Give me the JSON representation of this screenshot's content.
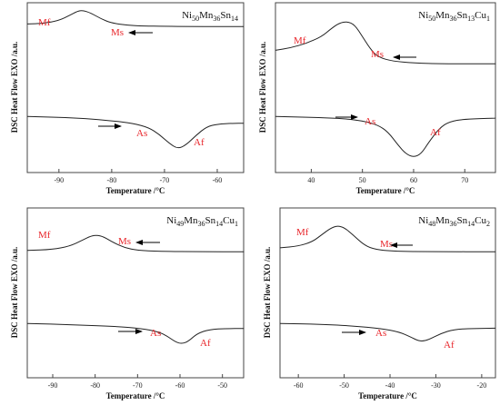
{
  "chart_data": [
    {
      "type": "line",
      "title": "Ni50Mn36Sn14",
      "title_parts": [
        [
          "Ni",
          ""
        ],
        [
          "50",
          "sub"
        ],
        [
          "Mn",
          ""
        ],
        [
          "36",
          "sub"
        ],
        [
          "Sn",
          ""
        ],
        [
          "14",
          "sub"
        ]
      ],
      "xlabel": "Temperature /°C",
      "ylabel": "DSC Heat Flow EXO /a.u.",
      "xlim": [
        -96,
        -55
      ],
      "xticks": [
        -90,
        -80,
        -70,
        -60
      ],
      "tick_labels": [
        "-90",
        "-80",
        "-70",
        "-60"
      ],
      "ylim": [
        0,
        1
      ],
      "series": [
        {
          "points": [
            [
              -96,
              0.875
            ],
            [
              -93,
              0.878
            ],
            [
              -90,
              0.895
            ],
            [
              -88,
              0.925
            ],
            [
              -86.5,
              0.95
            ],
            [
              -85.5,
              0.955
            ],
            [
              -84,
              0.94
            ],
            [
              -82,
              0.905
            ],
            [
              -80,
              0.88
            ],
            [
              -77,
              0.868
            ],
            [
              -74,
              0.863
            ],
            [
              -70,
              0.861
            ],
            [
              -65,
              0.86
            ],
            [
              -60,
              0.86
            ],
            [
              -55,
              0.86
            ]
          ]
        },
        {
          "points": [
            [
              -96,
              0.33
            ],
            [
              -90,
              0.325
            ],
            [
              -85,
              0.318
            ],
            [
              -80,
              0.305
            ],
            [
              -76,
              0.29
            ],
            [
              -73,
              0.265
            ],
            [
              -71,
              0.225
            ],
            [
              -69,
              0.17
            ],
            [
              -67.5,
              0.14
            ],
            [
              -66,
              0.16
            ],
            [
              -64,
              0.22
            ],
            [
              -62,
              0.27
            ],
            [
              -60,
              0.285
            ],
            [
              -57,
              0.29
            ],
            [
              -55,
              0.29
            ]
          ]
        }
      ],
      "annotations": {
        "Mf": "Mf",
        "Ms": "Ms",
        "As": "As",
        "Af": "Af"
      },
      "colors": {
        "annotation": "#e8252a",
        "line": "#222222",
        "arrow": "#000000"
      }
    },
    {
      "type": "line",
      "title": "Ni50Mn36Sn13Cu1",
      "title_parts": [
        [
          "Ni",
          ""
        ],
        [
          "50",
          "sub"
        ],
        [
          "Mn",
          ""
        ],
        [
          "36",
          "sub"
        ],
        [
          "Sn",
          ""
        ],
        [
          "13",
          "sub"
        ],
        [
          "Cu",
          ""
        ],
        [
          "1",
          "sub"
        ]
      ],
      "xlabel": "Temperature /°C",
      "ylabel": "DSC Heat Flow EXO /a.u.",
      "xlim": [
        33,
        76
      ],
      "xticks": [
        40,
        50,
        60,
        70
      ],
      "tick_labels": [
        "40",
        "50",
        "60",
        "70"
      ],
      "ylim": [
        0,
        1
      ],
      "series": [
        {
          "points": [
            [
              33,
              0.72
            ],
            [
              36,
              0.735
            ],
            [
              39,
              0.76
            ],
            [
              42,
              0.8
            ],
            [
              44,
              0.85
            ],
            [
              45.5,
              0.88
            ],
            [
              47,
              0.89
            ],
            [
              48.5,
              0.87
            ],
            [
              50,
              0.8
            ],
            [
              51.5,
              0.73
            ],
            [
              53,
              0.68
            ],
            [
              56,
              0.655
            ],
            [
              60,
              0.645
            ],
            [
              66,
              0.64
            ],
            [
              76,
              0.64
            ]
          ]
        },
        {
          "points": [
            [
              33,
              0.33
            ],
            [
              40,
              0.325
            ],
            [
              46,
              0.318
            ],
            [
              50,
              0.305
            ],
            [
              53,
              0.28
            ],
            [
              55,
              0.24
            ],
            [
              57,
              0.16
            ],
            [
              58.5,
              0.11
            ],
            [
              60,
              0.09
            ],
            [
              61.5,
              0.11
            ],
            [
              63,
              0.18
            ],
            [
              65,
              0.26
            ],
            [
              67,
              0.3
            ],
            [
              70,
              0.315
            ],
            [
              76,
              0.32
            ]
          ]
        }
      ],
      "annotations": {
        "Mf": "Mf",
        "Ms": "Ms",
        "As": "As",
        "Af": "Af"
      },
      "colors": {
        "annotation": "#e8252a",
        "line": "#222222",
        "arrow": "#000000"
      }
    },
    {
      "type": "line",
      "title": "Ni49Mn36Sn14Cu1",
      "title_parts": [
        [
          "Ni",
          ""
        ],
        [
          "49",
          "sub"
        ],
        [
          "Mn",
          ""
        ],
        [
          "36",
          "sub"
        ],
        [
          "Sn",
          ""
        ],
        [
          "14",
          "sub"
        ],
        [
          "Cu",
          ""
        ],
        [
          "1",
          "sub"
        ]
      ],
      "xlabel": "Temperature /°C",
      "ylabel": "DSC Heat Flow EXO /a.u.",
      "xlim": [
        -96,
        -45
      ],
      "xticks": [
        -90,
        -80,
        -70,
        -60,
        -50
      ],
      "tick_labels": [
        "-90",
        "-80",
        "-70",
        "-60",
        "-50"
      ],
      "ylim": [
        0,
        1
      ],
      "series": [
        {
          "points": [
            [
              -96,
              0.75
            ],
            [
              -90,
              0.755
            ],
            [
              -86,
              0.775
            ],
            [
              -83,
              0.81
            ],
            [
              -81,
              0.835
            ],
            [
              -79.5,
              0.84
            ],
            [
              -78,
              0.83
            ],
            [
              -76,
              0.8
            ],
            [
              -73,
              0.765
            ],
            [
              -70,
              0.75
            ],
            [
              -65,
              0.745
            ],
            [
              -55,
              0.742
            ],
            [
              -45,
              0.742
            ]
          ]
        },
        {
          "points": [
            [
              -96,
              0.32
            ],
            [
              -85,
              0.312
            ],
            [
              -75,
              0.302
            ],
            [
              -69,
              0.29
            ],
            [
              -65,
              0.27
            ],
            [
              -63,
              0.245
            ],
            [
              -61,
              0.21
            ],
            [
              -59.5,
              0.2
            ],
            [
              -58,
              0.215
            ],
            [
              -56,
              0.26
            ],
            [
              -53,
              0.285
            ],
            [
              -49,
              0.29
            ],
            [
              -45,
              0.29
            ]
          ]
        }
      ],
      "annotations": {
        "Mf": "Mf",
        "Ms": "Ms",
        "As": "As",
        "Af": "Af"
      },
      "colors": {
        "annotation": "#e8252a",
        "line": "#222222",
        "arrow": "#000000"
      }
    },
    {
      "type": "line",
      "title": "Ni48Mn36Sn14Cu2",
      "title_parts": [
        [
          "Ni",
          ""
        ],
        [
          "48",
          "sub"
        ],
        [
          "Mn",
          ""
        ],
        [
          "36",
          "sub"
        ],
        [
          "Sn",
          ""
        ],
        [
          "14",
          "sub"
        ],
        [
          "Cu",
          ""
        ],
        [
          "2",
          "sub"
        ]
      ],
      "xlabel": "Temperature /°C",
      "ylabel": "DSC Heat Flow EXO /a.u.",
      "xlim": [
        -64,
        -17
      ],
      "xticks": [
        -60,
        -50,
        -40,
        -30,
        -20
      ],
      "tick_labels": [
        "-60",
        "-50",
        "-40",
        "-30",
        "-20"
      ],
      "ylim": [
        0,
        1
      ],
      "series": [
        {
          "points": [
            [
              -64,
              0.765
            ],
            [
              -60,
              0.775
            ],
            [
              -57,
              0.8
            ],
            [
              -55,
              0.84
            ],
            [
              -53,
              0.88
            ],
            [
              -51.5,
              0.895
            ],
            [
              -50,
              0.885
            ],
            [
              -48,
              0.84
            ],
            [
              -46,
              0.79
            ],
            [
              -44,
              0.76
            ],
            [
              -40,
              0.745
            ],
            [
              -30,
              0.742
            ],
            [
              -17,
              0.742
            ]
          ]
        },
        {
          "points": [
            [
              -64,
              0.32
            ],
            [
              -55,
              0.315
            ],
            [
              -48,
              0.305
            ],
            [
              -42,
              0.29
            ],
            [
              -38,
              0.27
            ],
            [
              -35.5,
              0.24
            ],
            [
              -34,
              0.22
            ],
            [
              -33,
              0.215
            ],
            [
              -31.5,
              0.225
            ],
            [
              -29,
              0.26
            ],
            [
              -26,
              0.285
            ],
            [
              -22,
              0.29
            ],
            [
              -17,
              0.292
            ]
          ]
        }
      ],
      "annotations": {
        "Mf": "Mf",
        "Ms": "Ms",
        "As": "As",
        "Af": "Af"
      },
      "colors": {
        "annotation": "#e8252a",
        "line": "#222222",
        "arrow": "#000000"
      }
    }
  ]
}
